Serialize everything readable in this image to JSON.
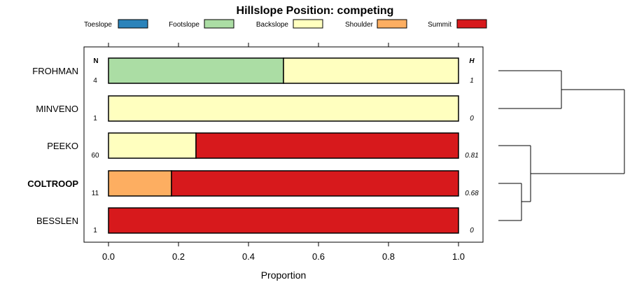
{
  "chart_data": {
    "type": "bar",
    "stacked": true,
    "orientation": "horizontal",
    "title": "Hillslope Position: competing",
    "xlabel": "Proportion",
    "ylabel": "",
    "xlim": [
      0,
      1
    ],
    "xticks": [
      "0.0",
      "0.2",
      "0.4",
      "0.6",
      "0.8",
      "1.0"
    ],
    "xtick_values": [
      0,
      0.2,
      0.4,
      0.6,
      0.8,
      1.0
    ],
    "legend": [
      {
        "name": "Toeslope",
        "color": "#2b83ba"
      },
      {
        "name": "Footslope",
        "color": "#abdda4"
      },
      {
        "name": "Backslope",
        "color": "#ffffbf"
      },
      {
        "name": "Shoulder",
        "color": "#fdae61"
      },
      {
        "name": "Summit",
        "color": "#d7191c"
      }
    ],
    "n_header": "N",
    "h_header": "H",
    "rows": [
      {
        "label": "FROHMAN",
        "bold": false,
        "n": "4",
        "h": "1",
        "values": [
          0,
          0.5,
          0.5,
          0,
          0
        ]
      },
      {
        "label": "MINVENO",
        "bold": false,
        "n": "1",
        "h": "0",
        "values": [
          0,
          0,
          1.0,
          0,
          0
        ]
      },
      {
        "label": "PEEKO",
        "bold": false,
        "n": "60",
        "h": "0.81",
        "values": [
          0,
          0,
          0.25,
          0,
          0.75
        ]
      },
      {
        "label": "COLTROOP",
        "bold": true,
        "n": "11",
        "h": "0.68",
        "values": [
          0,
          0,
          0,
          0.18,
          0.82
        ]
      },
      {
        "label": "BESSLEN",
        "bold": false,
        "n": "1",
        "h": "0",
        "values": [
          0,
          0,
          0,
          0,
          1.0
        ]
      }
    ],
    "dendrogram": {
      "merges": [
        {
          "a": "FROHMAN",
          "b": "MINVENO"
        },
        {
          "a": "COLTROOP",
          "b": "BESSLEN"
        },
        {
          "a": "PEEKO",
          "b": "COLTROOP+BESSLEN"
        },
        {
          "a": "FROHMAN+MINVENO",
          "b": "PEEKO+COLTROOP+BESSLEN"
        }
      ]
    }
  }
}
